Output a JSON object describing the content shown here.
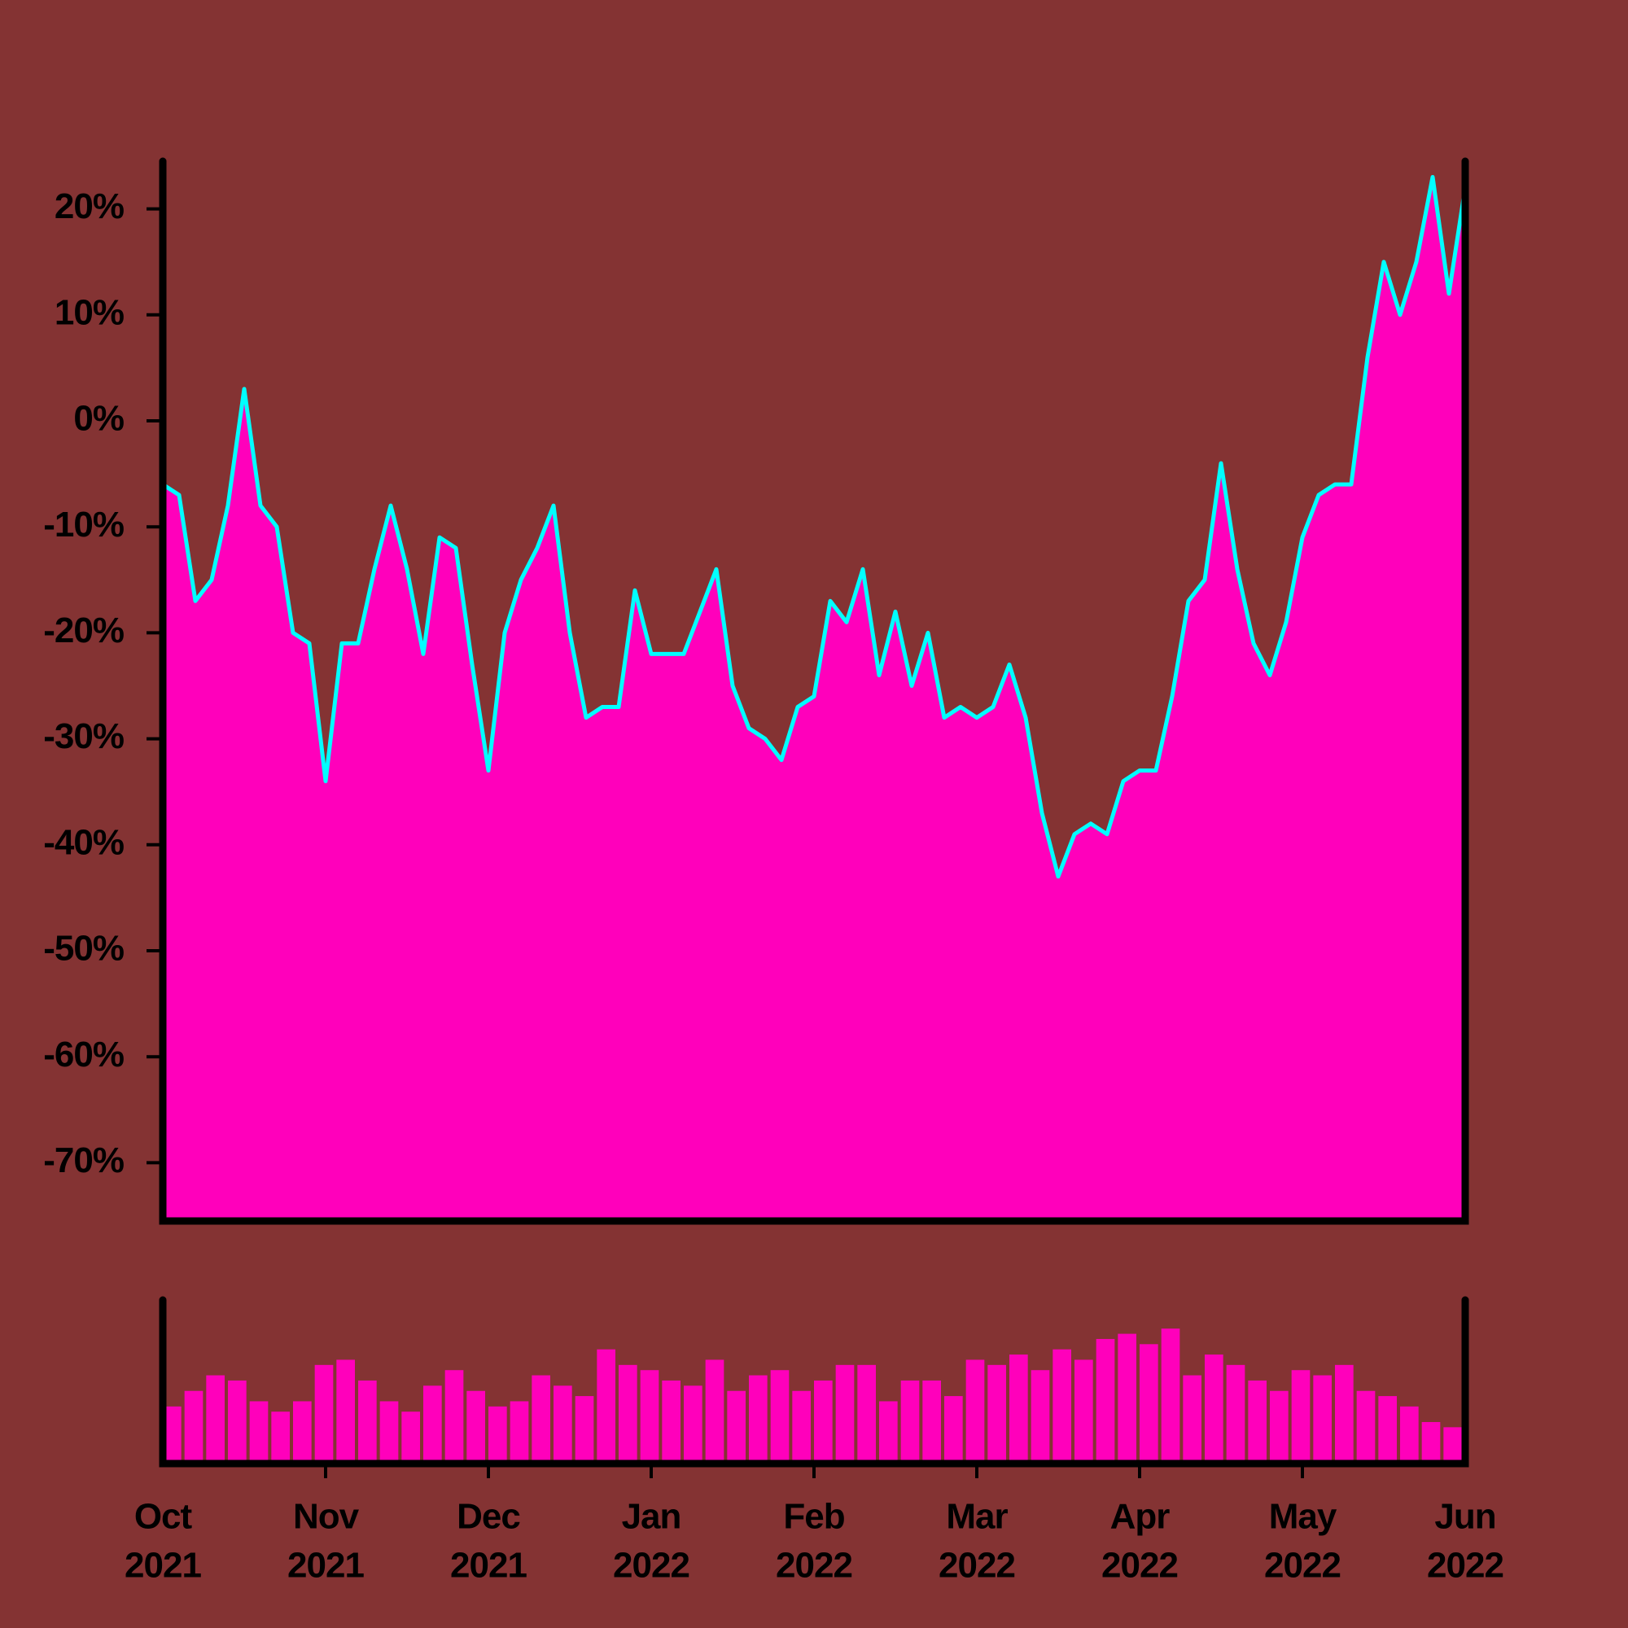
{
  "chart_data": [
    {
      "type": "area",
      "color": "#ff00bb",
      "line_color": "#00ffff",
      "values": [
        -6,
        -7,
        -17,
        -15,
        -8,
        3,
        -8,
        -10,
        -20,
        -21,
        -34,
        -21,
        -21,
        -14,
        -8,
        -14,
        -22,
        -11,
        -12,
        -23,
        -33,
        -20,
        -15,
        -12,
        -8,
        -20,
        -28,
        -27,
        -27,
        -16,
        -22,
        -22,
        -22,
        -18,
        -14,
        -25,
        -29,
        -30,
        -32,
        -27,
        -26,
        -17,
        -19,
        -14,
        -24,
        -18,
        -25,
        -20,
        -28,
        -27,
        -28,
        -27,
        -23,
        -28,
        -37,
        -43,
        -39,
        -38,
        -39,
        -34,
        -33,
        -33,
        -26,
        -17,
        -15,
        -4,
        -14,
        -21,
        -24,
        -19,
        -11,
        -7,
        -6,
        -6,
        6,
        15,
        10,
        15,
        23,
        12,
        22
      ],
      "ylim": [
        -75.5,
        24.5
      ],
      "yticks": [
        {
          "value": 20,
          "label": "20%"
        },
        {
          "value": 10,
          "label": "10%"
        },
        {
          "value": 0,
          "label": "0%"
        },
        {
          "value": -10,
          "label": "-10%"
        },
        {
          "value": -20,
          "label": "-20%"
        },
        {
          "value": -30,
          "label": "-30%"
        },
        {
          "value": -40,
          "label": "-40%"
        },
        {
          "value": -50,
          "label": "-50%"
        },
        {
          "value": -60,
          "label": "-60%"
        },
        {
          "value": -70,
          "label": "-70%"
        }
      ]
    },
    {
      "type": "bar",
      "color": "#ff00bb",
      "values": [
        55,
        70,
        85,
        80,
        60,
        50,
        60,
        95,
        100,
        80,
        60,
        50,
        75,
        90,
        70,
        55,
        60,
        85,
        75,
        65,
        110,
        95,
        90,
        80,
        75,
        100,
        70,
        85,
        90,
        70,
        80,
        95,
        95,
        60,
        80,
        80,
        65,
        100,
        95,
        105,
        90,
        110,
        100,
        120,
        125,
        115,
        130,
        85,
        105,
        95,
        80,
        70,
        90,
        85,
        95,
        70,
        65,
        55,
        40,
        35
      ],
      "xtick_labels": [
        [
          "Oct",
          "2021"
        ],
        [
          "Nov",
          "2021"
        ],
        [
          "Dec",
          "2021"
        ],
        [
          "Jan",
          "2022"
        ],
        [
          "Feb",
          "2022"
        ],
        [
          "Mar",
          "2022"
        ],
        [
          "Apr",
          "2022"
        ],
        [
          "May",
          "2022"
        ],
        [
          "Jun",
          "2022"
        ]
      ]
    }
  ]
}
